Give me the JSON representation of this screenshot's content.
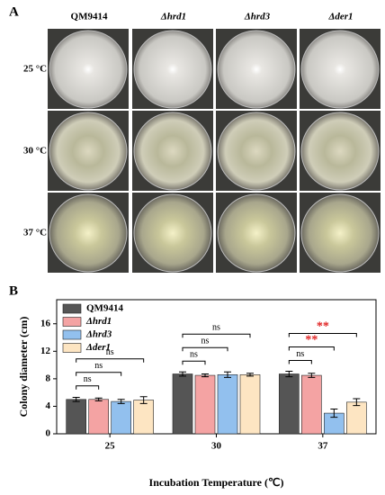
{
  "panel_a": {
    "label": "A",
    "columns": [
      "QM9414",
      "Δhrd1",
      "Δhrd3",
      "Δder1"
    ],
    "rows": [
      "25 °C",
      "30 °C",
      "37 °C"
    ]
  },
  "panel_b": {
    "label": "B"
  },
  "chart_data": {
    "type": "bar",
    "categories": [
      "25",
      "30",
      "37"
    ],
    "x_label": "Incubation Temperature (℃)",
    "y_label": "Colony diameter (cm)",
    "series": [
      {
        "name": "QM9414",
        "color": "#555555",
        "values": [
          5.0,
          8.7,
          8.7
        ],
        "errors": [
          0.3,
          0.3,
          0.4
        ]
      },
      {
        "name": "Δhrd1",
        "color": "#f4a3a3",
        "values": [
          5.0,
          8.5,
          8.5
        ],
        "errors": [
          0.2,
          0.2,
          0.3
        ]
      },
      {
        "name": "Δhrd3",
        "color": "#92c0ee",
        "values": [
          4.7,
          8.6,
          3.0
        ],
        "errors": [
          0.3,
          0.4,
          0.6
        ]
      },
      {
        "name": "Δder1",
        "color": "#fde5c2",
        "values": [
          4.9,
          8.6,
          4.6
        ],
        "errors": [
          0.5,
          0.2,
          0.5
        ]
      }
    ],
    "annotations": [
      [
        {
          "label": "ns",
          "color": "#000000"
        },
        {
          "label": "ns",
          "color": "#000000"
        },
        {
          "label": "ns",
          "color": "#000000"
        }
      ],
      [
        {
          "label": "ns",
          "color": "#000000"
        },
        {
          "label": "ns",
          "color": "#000000"
        },
        {
          "label": "ns",
          "color": "#000000"
        }
      ],
      [
        {
          "label": "ns",
          "color": "#000000"
        },
        {
          "label": "**",
          "color": "#e02020"
        },
        {
          "label": "**",
          "color": "#e02020"
        }
      ]
    ],
    "ylim": [
      0,
      19.5
    ],
    "yticks": [
      0,
      4,
      8,
      12,
      16
    ],
    "legend": "upper-left"
  }
}
